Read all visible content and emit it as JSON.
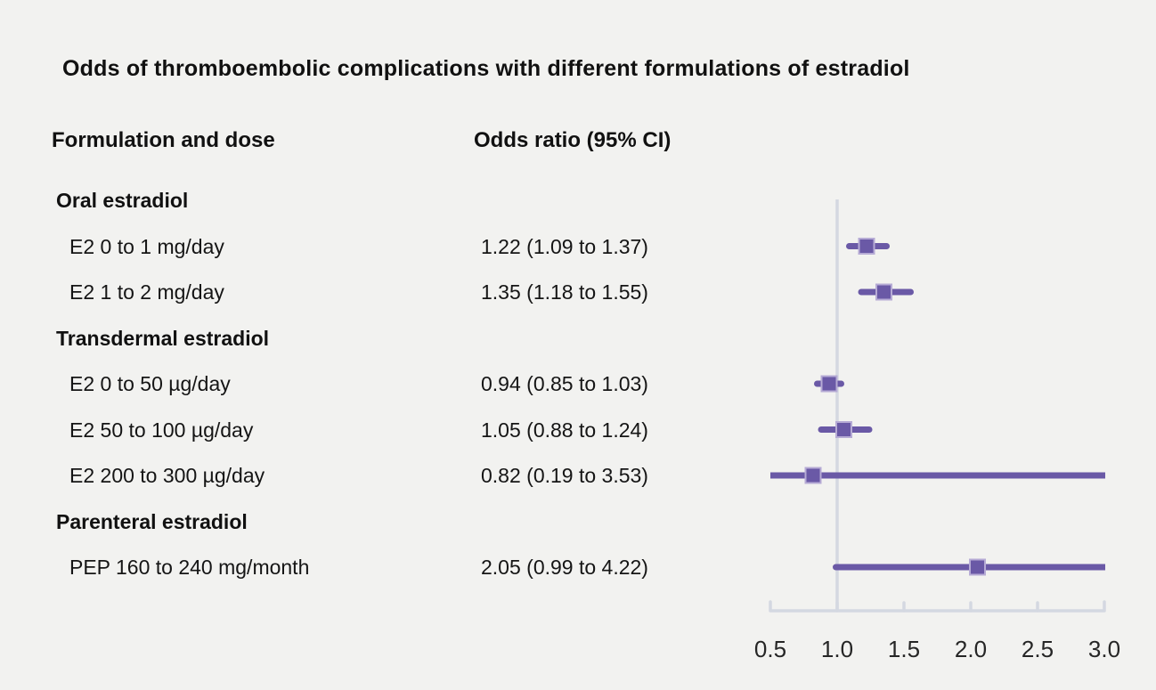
{
  "title": "Odds of thromboembolic complications with different formulations of estradiol",
  "columns": {
    "formulation": "Formulation and dose",
    "odds": "Odds ratio (95% CI)"
  },
  "chart_data": {
    "type": "forest",
    "title": "Odds of thromboembolic complications with different formulations of estradiol",
    "xlabel": "",
    "ylabel": "",
    "legend": "none",
    "grid": false,
    "axis": {
      "min": 0.5,
      "max": 3.0,
      "reference": 1.0,
      "ticks": [
        0.5,
        1.0,
        1.5,
        2.0,
        2.5,
        3.0
      ],
      "tick_labels": [
        "0.5",
        "1.0",
        "1.5",
        "2.0",
        "2.5",
        "3.0"
      ]
    },
    "rows": [
      {
        "type": "group",
        "label": "Oral estradiol"
      },
      {
        "type": "item",
        "label": "E2 0 to 1 mg/day",
        "display": "1.22 (1.09 to 1.37)",
        "est": 1.22,
        "lo": 1.09,
        "hi": 1.37
      },
      {
        "type": "item",
        "label": "E2 1 to 2 mg/day",
        "display": "1.35 (1.18 to 1.55)",
        "est": 1.35,
        "lo": 1.18,
        "hi": 1.55
      },
      {
        "type": "group",
        "label": "Transdermal estradiol"
      },
      {
        "type": "item",
        "label": "E2 0 to 50 µg/day",
        "display": "0.94 (0.85 to 1.03)",
        "est": 0.94,
        "lo": 0.85,
        "hi": 1.03
      },
      {
        "type": "item",
        "label": "E2 50 to 100 µg/day",
        "display": "1.05 (0.88 to 1.24)",
        "est": 1.05,
        "lo": 0.88,
        "hi": 1.24
      },
      {
        "type": "item",
        "label": "E2 200 to 300 µg/day",
        "display": "0.82 (0.19 to 3.53)",
        "est": 0.82,
        "lo": 0.19,
        "hi": 3.53
      },
      {
        "type": "group",
        "label": "Parenteral estradiol"
      },
      {
        "type": "item",
        "label": "PEP 160 to 240 mg/month",
        "display": "2.05 (0.99 to 4.22)",
        "est": 2.05,
        "lo": 0.99,
        "hi": 4.22
      }
    ],
    "colors": {
      "marker": "#6a59a6",
      "marker_rim": "#b6abd5",
      "axis": "#d4d8e1",
      "background": "#f2f2f0",
      "text": "#151515"
    }
  }
}
